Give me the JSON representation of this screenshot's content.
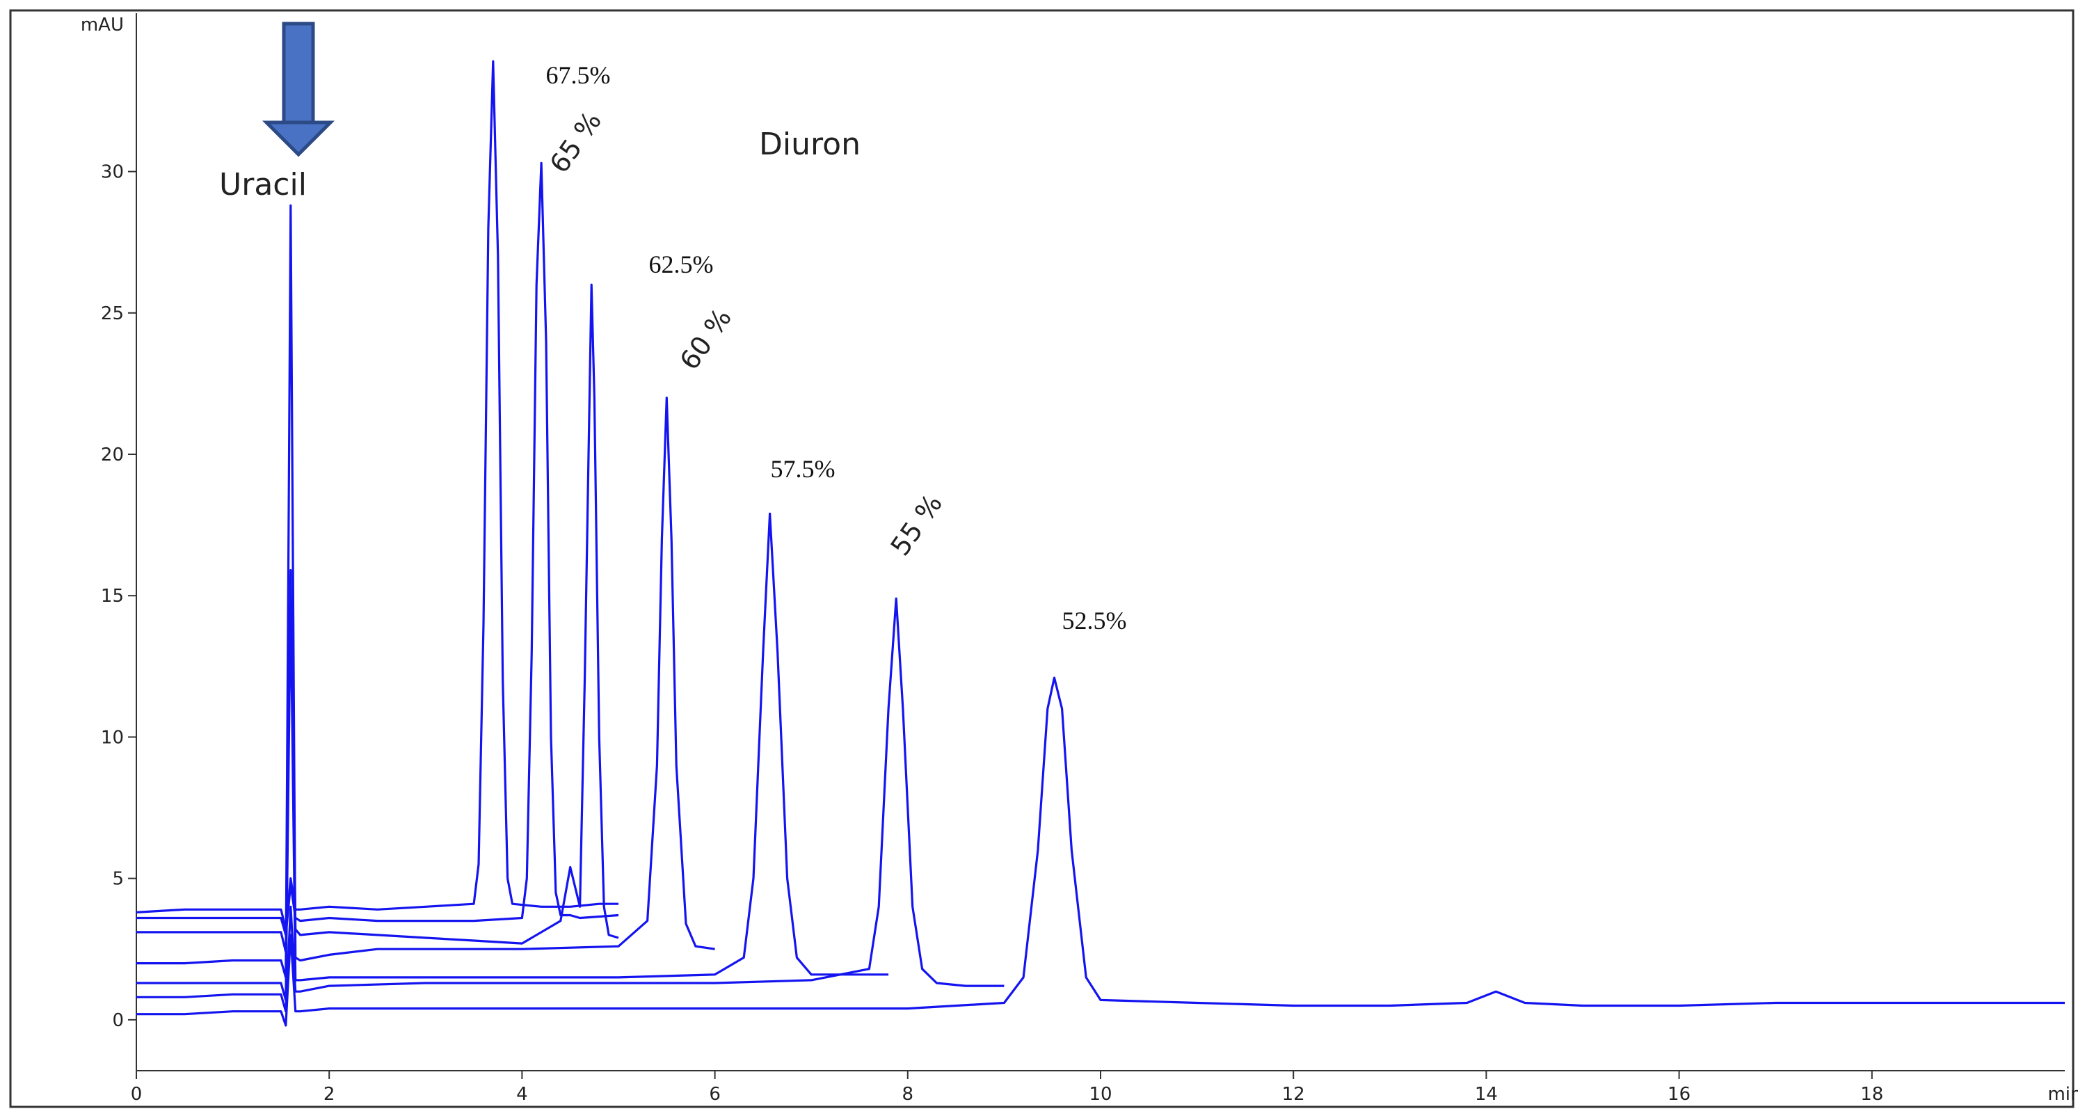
{
  "chart_data": {
    "type": "line",
    "x_label": "min",
    "y_label": "mAU",
    "xlim": [
      0,
      20
    ],
    "ylim": [
      -1.8,
      35.6
    ],
    "xticks": [
      0,
      2,
      4,
      6,
      8,
      10,
      12,
      14,
      16,
      18
    ],
    "yticks": [
      0,
      5,
      10,
      15,
      20,
      25,
      30
    ],
    "annotations": [
      "Uracil",
      "Diuron",
      "67.5%",
      "65 %",
      "62.5%",
      "60 %",
      "57.5%",
      "55 %",
      "52.5%"
    ],
    "series": [
      {
        "color": "#1414f0",
        "x": [
          0,
          0.5,
          1,
          1.5,
          1.55,
          1.6,
          1.65,
          1.7,
          2,
          2.5,
          3,
          3.5,
          3.55,
          3.6,
          3.65,
          3.7,
          3.75,
          3.8,
          3.85,
          3.9,
          4.2,
          4.5,
          4.8,
          5
        ],
        "values": [
          3.8,
          3.9,
          3.9,
          3.9,
          3.2,
          5.0,
          3.9,
          3.9,
          4.0,
          3.9,
          4.0,
          4.1,
          5.5,
          14,
          28,
          33.9,
          27,
          12,
          5.0,
          4.1,
          4.0,
          4.0,
          4.1,
          4.1
        ]
      },
      {
        "color": "#1414f0",
        "x": [
          0,
          0.5,
          1,
          1.5,
          1.55,
          1.6,
          1.65,
          1.7,
          2,
          2.5,
          3,
          3.5,
          4,
          4.05,
          4.1,
          4.15,
          4.2,
          4.25,
          4.3,
          4.35,
          4.4,
          4.5,
          4.6,
          5
        ],
        "values": [
          3.6,
          3.6,
          3.6,
          3.6,
          3.0,
          4.8,
          3.6,
          3.5,
          3.6,
          3.5,
          3.5,
          3.5,
          3.6,
          5,
          13,
          26,
          30.3,
          24,
          10,
          4.5,
          3.7,
          3.7,
          3.6,
          3.7
        ]
      },
      {
        "color": "#1414f0",
        "x": [
          0,
          0.5,
          1,
          1.5,
          1.55,
          1.6,
          1.65,
          1.7,
          2,
          2.5,
          3,
          3.5,
          4,
          4.4,
          4.5,
          4.6,
          4.65,
          4.7,
          4.72,
          4.75,
          4.8,
          4.85,
          4.9,
          5
        ],
        "values": [
          3.1,
          3.1,
          3.1,
          3.1,
          2.4,
          15.9,
          3.2,
          3.0,
          3.1,
          3.0,
          2.9,
          2.8,
          2.7,
          3.5,
          5.4,
          4.0,
          12,
          22,
          26,
          22,
          10,
          4,
          3.0,
          2.9
        ]
      },
      {
        "color": "#1414f0",
        "x": [
          0,
          0.5,
          1,
          1.5,
          1.55,
          1.6,
          1.65,
          1.7,
          2,
          2.5,
          3,
          4,
          5,
          5.3,
          5.4,
          5.45,
          5.5,
          5.55,
          5.6,
          5.7,
          5.8,
          6
        ],
        "values": [
          2.0,
          2.0,
          2.1,
          2.1,
          1.5,
          28.8,
          2.2,
          2.1,
          2.3,
          2.5,
          2.5,
          2.5,
          2.6,
          3.5,
          9,
          17,
          22,
          17,
          9,
          3.4,
          2.6,
          2.5
        ]
      },
      {
        "color": "#1414f0",
        "x": [
          0,
          0.5,
          1,
          1.5,
          1.55,
          1.6,
          1.65,
          1.7,
          2,
          3,
          4,
          5,
          6,
          6.3,
          6.4,
          6.5,
          6.57,
          6.65,
          6.75,
          6.85,
          7,
          7.5,
          7.8
        ],
        "values": [
          1.3,
          1.3,
          1.3,
          1.3,
          0.7,
          15,
          1.4,
          1.4,
          1.5,
          1.5,
          1.5,
          1.5,
          1.6,
          2.2,
          5,
          13,
          17.9,
          13,
          5,
          2.2,
          1.6,
          1.6,
          1.6
        ]
      },
      {
        "color": "#1414f0",
        "x": [
          0,
          0.5,
          1,
          1.5,
          1.55,
          1.6,
          1.65,
          1.7,
          2,
          3,
          4,
          5,
          6,
          7,
          7.6,
          7.7,
          7.8,
          7.88,
          7.95,
          8.05,
          8.15,
          8.3,
          8.6,
          9
        ],
        "values": [
          0.8,
          0.8,
          0.9,
          0.9,
          0.3,
          4,
          1.0,
          1.0,
          1.2,
          1.3,
          1.3,
          1.3,
          1.3,
          1.4,
          1.8,
          4,
          11,
          14.9,
          11,
          4,
          1.8,
          1.3,
          1.2,
          1.2
        ]
      },
      {
        "color": "#1414f0",
        "x": [
          0,
          0.5,
          1,
          1.5,
          1.55,
          1.6,
          1.65,
          1.7,
          2,
          4,
          6,
          8,
          9,
          9.2,
          9.35,
          9.45,
          9.52,
          9.6,
          9.7,
          9.85,
          10,
          11,
          12,
          13,
          13.8,
          14.1,
          14.4,
          15,
          16,
          17,
          18,
          19,
          20
        ],
        "values": [
          0.2,
          0.2,
          0.3,
          0.3,
          -0.2,
          3,
          0.3,
          0.3,
          0.4,
          0.4,
          0.4,
          0.4,
          0.6,
          1.5,
          6,
          11,
          12.1,
          11,
          6,
          1.5,
          0.7,
          0.6,
          0.5,
          0.5,
          0.6,
          1.0,
          0.6,
          0.5,
          0.5,
          0.6,
          0.6,
          0.6,
          0.6
        ]
      }
    ]
  }
}
